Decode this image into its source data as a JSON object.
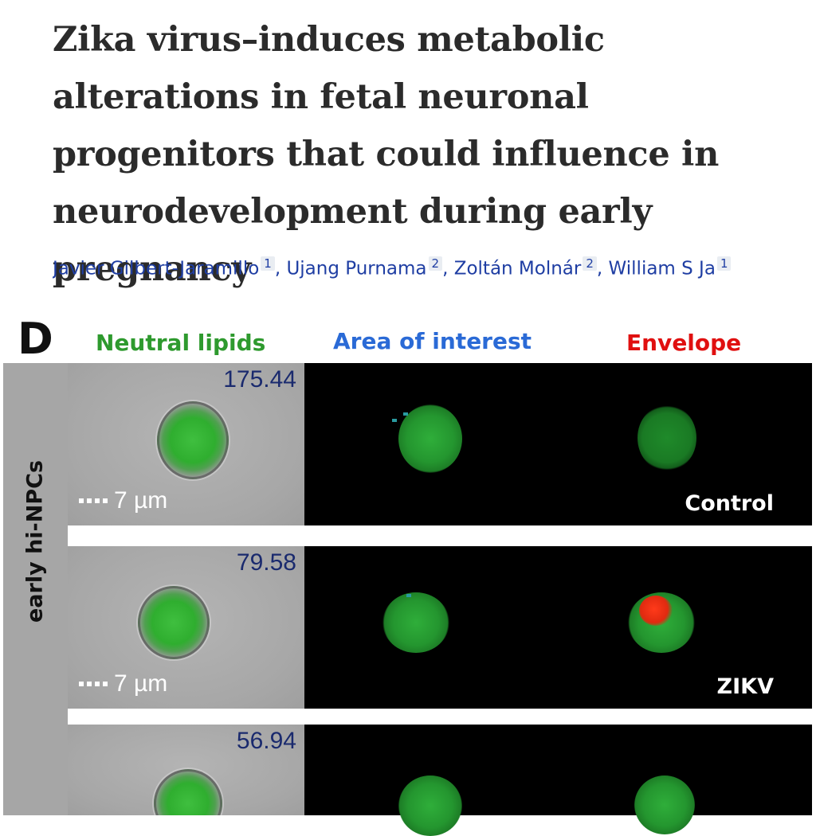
{
  "article": {
    "title": "Zika virus–induces metabolic alterations in fetal neuronal progenitors that could influence in neurodevelopment during early pregnancy",
    "authors": [
      {
        "name": "Javier Gilbert-Jaramillo",
        "affiliation": "1"
      },
      {
        "name": "Ujang Purnama",
        "affiliation": "2"
      },
      {
        "name": "Zoltán Molnár",
        "affiliation": "2"
      },
      {
        "name": "William S Ja",
        "affiliation": "1"
      }
    ]
  },
  "figure": {
    "panel_letter": "D",
    "columns": [
      {
        "label": "Neutral lipids",
        "color": "#2e9a2e"
      },
      {
        "label": "Area of interest",
        "color": "#2a6ad6"
      },
      {
        "label": "Envelope",
        "color": "#e01010"
      }
    ],
    "side_label": "early hi-NPCs",
    "rows": [
      {
        "value": "175.44",
        "scale": "7 µm",
        "condition": "Control"
      },
      {
        "value": "79.58",
        "scale": "7 µm",
        "condition": "ZIKV"
      },
      {
        "value": "56.94",
        "scale": "",
        "condition": ""
      }
    ]
  }
}
